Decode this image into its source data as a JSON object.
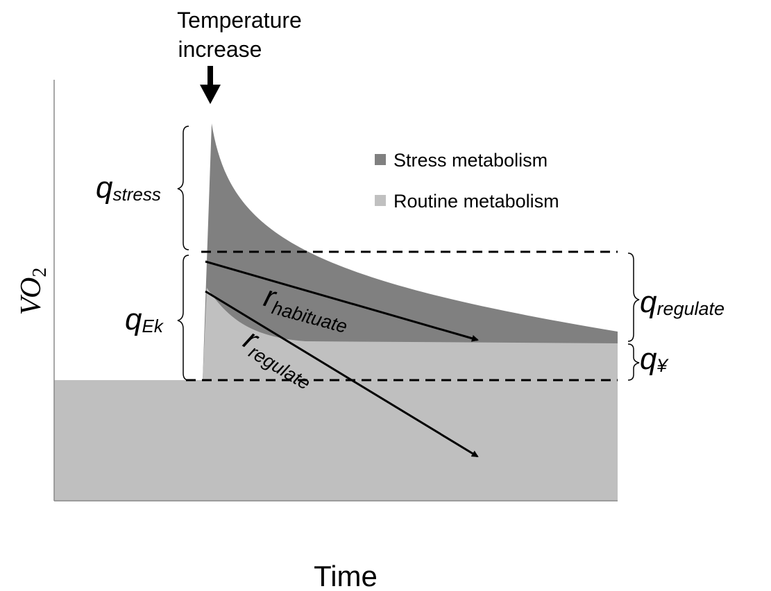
{
  "annotation": [
    "Temperature",
    "increase"
  ],
  "axes": {
    "y_label": {
      "base": "VO",
      "sub": "2"
    },
    "x_label": "Time"
  },
  "legend": [
    {
      "label": "Stress metabolism",
      "color": "#808080"
    },
    {
      "label": "Routine metabolism",
      "color": "#c0c0c0"
    }
  ],
  "labels": {
    "q_stress": {
      "base": "q",
      "sub": "stress"
    },
    "q_ek": {
      "base": "q",
      "sub": "Ek"
    },
    "r_habituate": {
      "base": "r",
      "sub": "habituate"
    },
    "r_regulate": {
      "base": "r",
      "sub": "regulate"
    },
    "q_regulate": {
      "base": "q",
      "sub": "regulate"
    },
    "q_yen": {
      "base": "q",
      "sub": "¥"
    }
  }
}
